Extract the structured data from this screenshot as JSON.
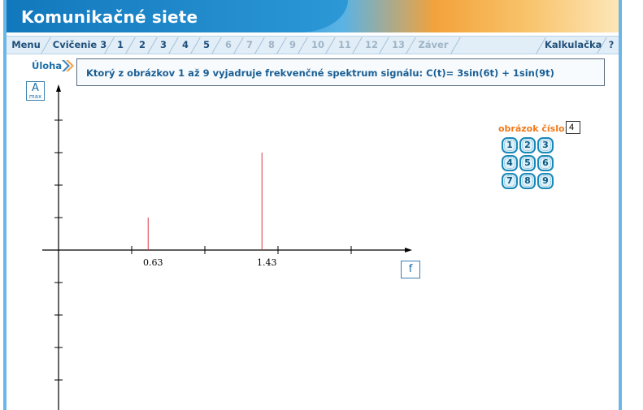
{
  "app": {
    "title": "Komunikačné siete"
  },
  "nav": {
    "menu": "Menu",
    "exercise": "Cvičenie 3",
    "steps": [
      "1",
      "2",
      "3",
      "4",
      "5",
      "6",
      "7",
      "8",
      "9",
      "10",
      "11",
      "12",
      "13"
    ],
    "conclusion": "Záver",
    "calculator": "Kalkulačka",
    "help": "?"
  },
  "task": {
    "label": "Úloha",
    "question": "Ktorý z obrázkov 1 až 9 vyjadruje frekvenčné spektrum signálu: C(t)= 3sin(6t) + 1sin(9t)"
  },
  "axis": {
    "y_label_main": "A",
    "y_label_sub": "max",
    "x_label": "f"
  },
  "picker": {
    "label": "obrázok číslo:",
    "value": "4",
    "buttons": [
      "1",
      "2",
      "3",
      "4",
      "5",
      "6",
      "7",
      "8",
      "9"
    ]
  },
  "chart_data": {
    "type": "bar",
    "x_tick_labels": [
      "0.63",
      "1.43"
    ],
    "series": [
      {
        "values": [
          {
            "x": 0.63,
            "y": 1
          },
          {
            "x": 1.43,
            "y": 3
          }
        ]
      }
    ],
    "line_color": "#d9363e",
    "xlabel": "f",
    "ylabel": "A max"
  }
}
